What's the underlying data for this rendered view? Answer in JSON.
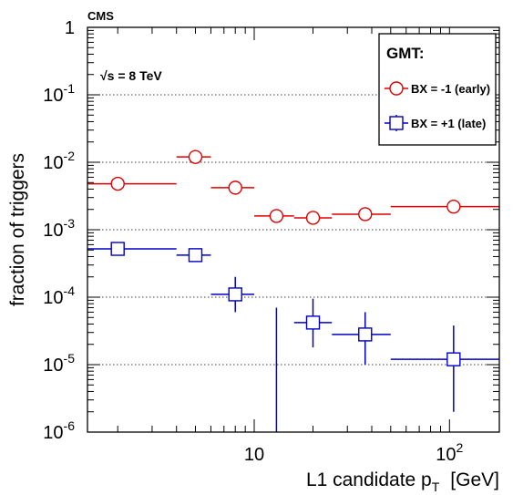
{
  "chart_data": {
    "type": "scatter",
    "experiment_label": "CMS",
    "energy_label": "√s = 8 TeV",
    "xlabel": "L1 candidate p",
    "xlabel_subscript": "T",
    "xlabel_unit": "[GeV]",
    "ylabel": "fraction of triggers",
    "x_scale": "log",
    "y_scale": "log",
    "xlim": [
      1.4,
      180
    ],
    "ylim": [
      1e-06,
      1
    ],
    "grid": "horizontal-dotted",
    "legend_placement": "top-right",
    "legend_title": "GMT:",
    "x_tick_labels": [
      {
        "value": 10,
        "base": "10",
        "exp": ""
      },
      {
        "value": 100,
        "base": "10",
        "exp": "2"
      }
    ],
    "y_tick_labels": [
      {
        "value": 1,
        "base": "1",
        "exp": ""
      },
      {
        "value": 0.1,
        "base": "10",
        "exp": "-1"
      },
      {
        "value": 0.01,
        "base": "10",
        "exp": "-2"
      },
      {
        "value": 0.001,
        "base": "10",
        "exp": "-3"
      },
      {
        "value": 0.0001,
        "base": "10",
        "exp": "-4"
      },
      {
        "value": 1e-05,
        "base": "10",
        "exp": "-5"
      },
      {
        "value": 1e-06,
        "base": "10",
        "exp": "-6"
      }
    ],
    "series": [
      {
        "name": "BX = -1 (early)",
        "color": "#e00000",
        "marker": "open-circle",
        "points": [
          {
            "x": 2.0,
            "xlow": 1.4,
            "xhigh": 4.0,
            "y": 0.0048
          },
          {
            "x": 5.0,
            "xlow": 4.0,
            "xhigh": 6.0,
            "y": 0.012
          },
          {
            "x": 8.0,
            "xlow": 6.0,
            "xhigh": 10.0,
            "y": 0.0042
          },
          {
            "x": 13.0,
            "xlow": 10.0,
            "xhigh": 16.0,
            "y": 0.0016
          },
          {
            "x": 20.0,
            "xlow": 16.0,
            "xhigh": 25.0,
            "y": 0.0015
          },
          {
            "x": 37.0,
            "xlow": 25.0,
            "xhigh": 50.0,
            "y": 0.0017
          },
          {
            "x": 105.0,
            "xlow": 50.0,
            "xhigh": 180.0,
            "y": 0.0022
          }
        ]
      },
      {
        "name": "BX = +1 (late)",
        "color": "#0000c8",
        "marker": "open-square",
        "points": [
          {
            "x": 2.0,
            "xlow": 1.4,
            "xhigh": 4.0,
            "y": 0.00052,
            "ylow": 0.00052,
            "yhigh": 0.00052
          },
          {
            "x": 5.0,
            "xlow": 4.0,
            "xhigh": 6.0,
            "y": 0.00042,
            "ylow": 0.00042,
            "yhigh": 0.00042
          },
          {
            "x": 8.0,
            "xlow": 6.0,
            "xhigh": 10.0,
            "y": 0.00011,
            "ylow": 6e-05,
            "yhigh": 0.0002
          },
          {
            "x": 13.0,
            "xlow": 13.0,
            "xhigh": 13.0,
            "y": null,
            "ylow": 1e-06,
            "yhigh": 7e-05
          },
          {
            "x": 20.0,
            "xlow": 16.0,
            "xhigh": 25.0,
            "y": 4.2e-05,
            "ylow": 1.8e-05,
            "yhigh": 9.5e-05
          },
          {
            "x": 37.0,
            "xlow": 25.0,
            "xhigh": 50.0,
            "y": 2.8e-05,
            "ylow": 1e-05,
            "yhigh": 6e-05
          },
          {
            "x": 105.0,
            "xlow": 50.0,
            "xhigh": 180.0,
            "y": 1.2e-05,
            "ylow": 2e-06,
            "yhigh": 3.8e-05
          }
        ]
      }
    ]
  }
}
